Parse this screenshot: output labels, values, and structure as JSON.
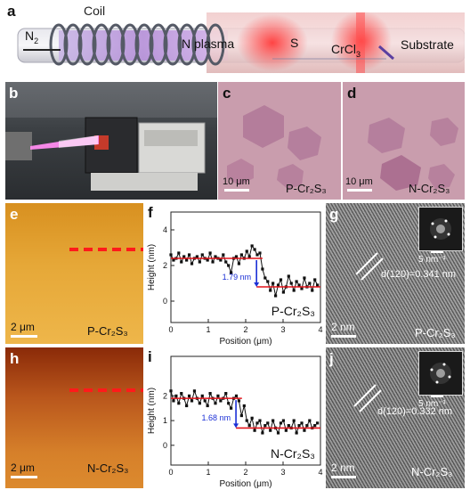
{
  "panel_letters": {
    "a": "a",
    "b": "b",
    "c": "c",
    "d": "d",
    "e": "e",
    "f": "f",
    "g": "g",
    "h": "h",
    "i": "i",
    "j": "j"
  },
  "schematic": {
    "coil": "Coil",
    "n2_main": "N",
    "n2_sub": "2",
    "plasma": "N plasma",
    "sulfur": "S",
    "crcl_main": "CrCl",
    "crcl_sub": "3",
    "substrate": "Substrate"
  },
  "optical": {
    "scalebar_c": "10 μm",
    "sample_c": "P-Cr₂S₃",
    "scalebar_d": "10 μm",
    "sample_d": "N-Cr₂S₃"
  },
  "afm": {
    "scalebar_e": "2 μm",
    "sample_e": "P-Cr₂S₃",
    "scalebar_h": "2 μm",
    "sample_h": "N-Cr₂S₃"
  },
  "hrtem": {
    "fft_g": "5 nm⁻¹",
    "dspacing_g": "d(120)=0.341 nm",
    "scalebar_g": "2 nm",
    "sample_g": "P-Cr₂S₃",
    "fft_j": "5 nm⁻¹",
    "dspacing_j": "d(120)=0.332 nm",
    "scalebar_j": "2 nm",
    "sample_j": "N-Cr₂S₃"
  },
  "chart_data": [
    {
      "type": "line",
      "panel": "f",
      "xlabel": "Position (μm)",
      "ylabel": "Height (nm)",
      "xlim": [
        0,
        4
      ],
      "ylim": [
        -1.2,
        5
      ],
      "xticks": [
        0,
        1,
        2,
        3,
        4
      ],
      "yticks": [
        0,
        2,
        4
      ],
      "step_annotation": "1.79 nm",
      "sample_label": "P-Cr₂S₃",
      "levels": {
        "high": 2.4,
        "low": 0.8,
        "step_at": 2.45
      },
      "x": [
        0,
        0.07,
        0.14,
        0.21,
        0.28,
        0.35,
        0.42,
        0.49,
        0.56,
        0.63,
        0.7,
        0.77,
        0.84,
        0.91,
        0.98,
        1.05,
        1.12,
        1.19,
        1.26,
        1.33,
        1.4,
        1.47,
        1.54,
        1.61,
        1.68,
        1.75,
        1.82,
        1.89,
        1.96,
        2.03,
        2.1,
        2.17,
        2.24,
        2.31,
        2.38,
        2.45,
        2.52,
        2.59,
        2.66,
        2.73,
        2.8,
        2.87,
        2.94,
        3.01,
        3.08,
        3.15,
        3.22,
        3.29,
        3.36,
        3.43,
        3.5,
        3.57,
        3.64,
        3.71,
        3.78,
        3.85,
        3.92
      ],
      "y": [
        2.6,
        2.3,
        2.4,
        2.7,
        2.2,
        2.5,
        2.3,
        2.6,
        2.1,
        2.4,
        2.5,
        2.2,
        2.6,
        2.4,
        2.3,
        2.7,
        2.2,
        2.5,
        2.4,
        2.3,
        2.6,
        2.2,
        2.0,
        1.6,
        2.4,
        2.5,
        2.1,
        2.6,
        2.4,
        2.8,
        2.5,
        3.1,
        2.9,
        2.6,
        2.7,
        1.8,
        1.3,
        1.1,
        0.6,
        1.0,
        0.3,
        0.9,
        1.2,
        0.5,
        0.8,
        1.4,
        1.0,
        0.6,
        1.1,
        0.9,
        0.7,
        1.3,
        0.8,
        1.0,
        0.6,
        1.2,
        0.9
      ]
    },
    {
      "type": "line",
      "panel": "i",
      "xlabel": "Position (μm)",
      "ylabel": "Height (nm)",
      "xlim": [
        0,
        4
      ],
      "ylim": [
        -0.8,
        3.6
      ],
      "xticks": [
        0,
        1,
        2,
        3,
        4
      ],
      "yticks": [
        0,
        1,
        2
      ],
      "step_annotation": "1.68 nm",
      "sample_label": "N-Cr₂S₃",
      "levels": {
        "high": 1.9,
        "low": 0.7,
        "step_at": 1.9
      },
      "x": [
        0,
        0.07,
        0.14,
        0.21,
        0.28,
        0.35,
        0.42,
        0.49,
        0.56,
        0.63,
        0.7,
        0.77,
        0.84,
        0.91,
        0.98,
        1.05,
        1.12,
        1.19,
        1.26,
        1.33,
        1.4,
        1.47,
        1.54,
        1.61,
        1.68,
        1.75,
        1.82,
        1.89,
        1.96,
        2.03,
        2.1,
        2.17,
        2.24,
        2.31,
        2.38,
        2.45,
        2.52,
        2.59,
        2.66,
        2.73,
        2.8,
        2.87,
        2.94,
        3.01,
        3.08,
        3.15,
        3.22,
        3.29,
        3.36,
        3.43,
        3.5,
        3.57,
        3.64,
        3.71,
        3.78,
        3.85,
        3.92
      ],
      "y": [
        2.2,
        1.8,
        2.0,
        1.7,
        2.1,
        1.9,
        1.6,
        2.0,
        1.8,
        2.2,
        1.9,
        1.7,
        2.0,
        1.8,
        1.6,
        2.1,
        1.9,
        1.7,
        2.0,
        1.8,
        1.9,
        2.1,
        1.7,
        1.5,
        1.9,
        2.0,
        1.8,
        1.2,
        1.6,
        1.0,
        0.8,
        1.1,
        0.6,
        0.9,
        1.0,
        0.5,
        0.8,
        0.9,
        0.6,
        1.0,
        0.7,
        0.5,
        0.9,
        1.0,
        0.6,
        0.8,
        0.7,
        1.0,
        0.5,
        0.8,
        0.9,
        0.6,
        0.8,
        1.0,
        0.7,
        0.8,
        0.9
      ]
    }
  ]
}
